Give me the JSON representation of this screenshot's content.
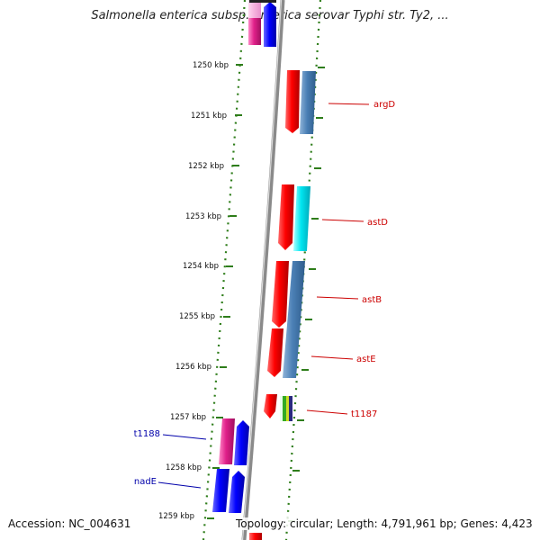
{
  "title": "Salmonella enterica subsp. enterica serovar Typhi str. Ty2, ...",
  "footer": {
    "accession": "Accession: NC_004631",
    "info": "Topology: circular; Length: 4,791,961 bp; Genes: 4,423"
  },
  "ruler": {
    "ticks": [
      "1250 kbp",
      "1251 kbp",
      "1252 kbp",
      "1253 kbp",
      "1254 kbp",
      "1255 kbp",
      "1256 kbp",
      "1257 kbp",
      "1258 kbp",
      "1259 kbp"
    ]
  },
  "genes": {
    "right": [
      "argD",
      "astD",
      "astB",
      "astE",
      "t1187"
    ],
    "left": [
      "t1188",
      "nadE"
    ]
  },
  "colors": {
    "forward_label": "#cc0000",
    "reverse_label": "#0000aa",
    "backbone": "#888888",
    "dotted_track": "#2e7d1a"
  }
}
